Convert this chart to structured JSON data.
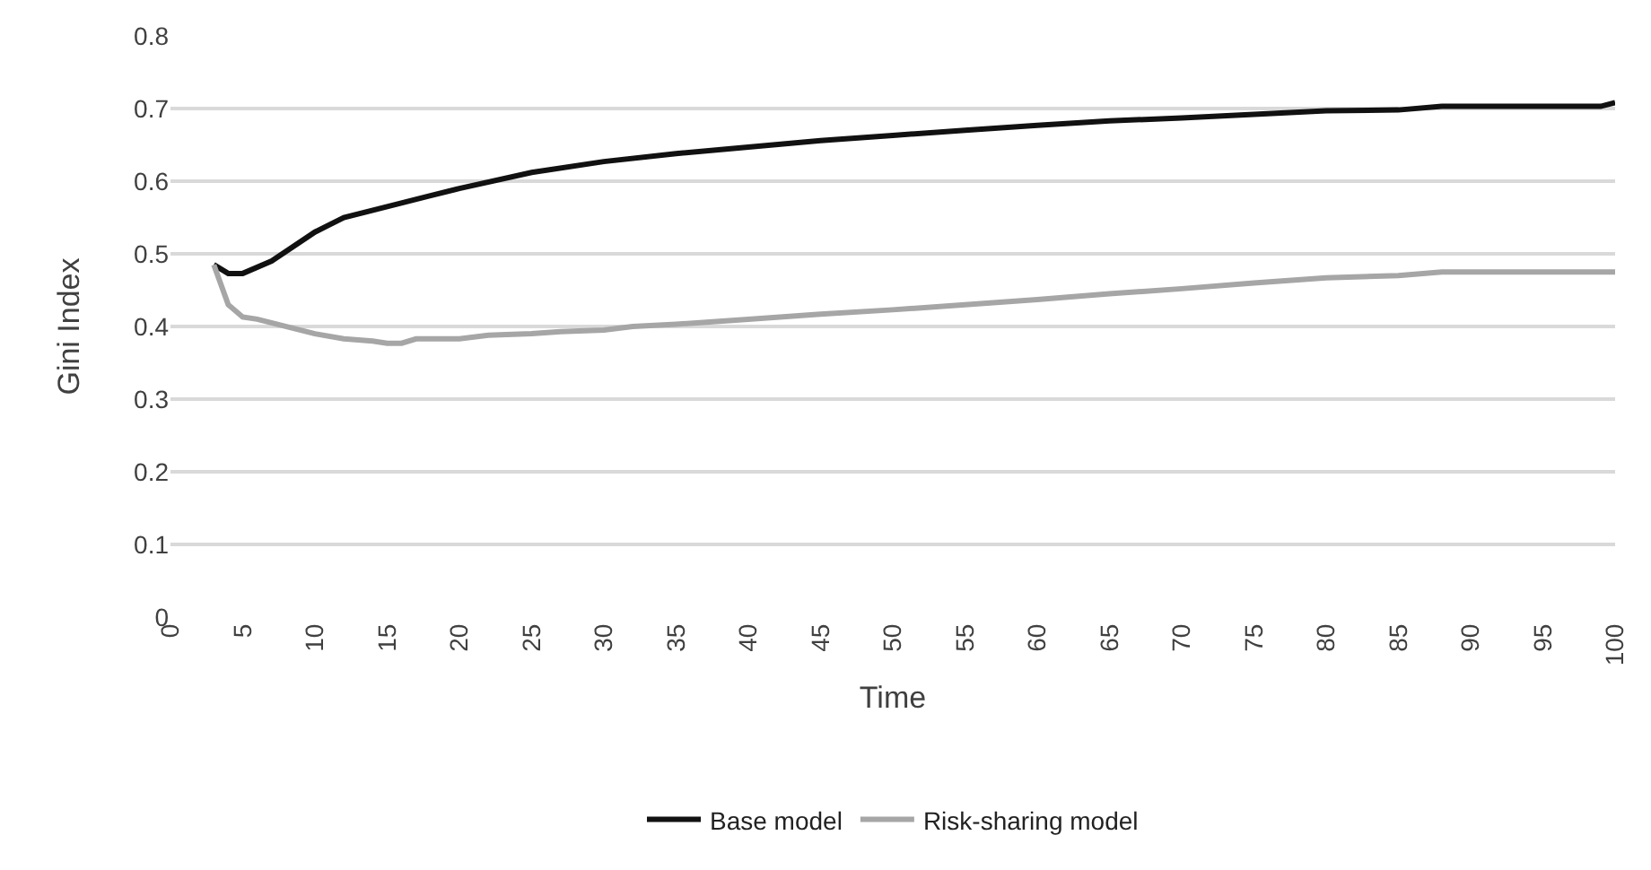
{
  "chart_data": {
    "type": "line",
    "xlabel": "Time",
    "ylabel": "Gini Index",
    "xlim": [
      0,
      100
    ],
    "xticks": [
      0,
      5,
      10,
      15,
      20,
      25,
      30,
      35,
      40,
      45,
      50,
      55,
      60,
      65,
      70,
      75,
      80,
      85,
      90,
      95,
      100
    ],
    "ylim": [
      0,
      0.8
    ],
    "yticks": [
      0,
      0.1,
      0.2,
      0.3,
      0.4,
      0.5,
      0.6,
      0.7,
      0.8
    ],
    "grid": "y",
    "legend": "bottom",
    "marker": "none",
    "line_style": "solid",
    "series": [
      {
        "name": "Base model",
        "color": "#111111",
        "x": [
          3,
          4,
          5,
          7,
          10,
          12,
          15,
          18,
          20,
          25,
          30,
          35,
          40,
          45,
          50,
          55,
          60,
          65,
          70,
          75,
          80,
          85,
          88,
          99,
          100
        ],
        "values": [
          0.485,
          0.473,
          0.473,
          0.49,
          0.53,
          0.55,
          0.565,
          0.58,
          0.59,
          0.612,
          0.627,
          0.638,
          0.647,
          0.656,
          0.663,
          0.67,
          0.677,
          0.683,
          0.687,
          0.692,
          0.697,
          0.698,
          0.703,
          0.703,
          0.708
        ]
      },
      {
        "name": "Risk-sharing model",
        "color": "#a6a6a6",
        "x": [
          3,
          4,
          5,
          6,
          10,
          12,
          14,
          15,
          16,
          17,
          20,
          22,
          25,
          27,
          30,
          32,
          35,
          40,
          45,
          50,
          55,
          60,
          65,
          70,
          75,
          80,
          85,
          88,
          100
        ],
        "values": [
          0.485,
          0.43,
          0.413,
          0.41,
          0.39,
          0.383,
          0.38,
          0.377,
          0.377,
          0.383,
          0.383,
          0.388,
          0.39,
          0.393,
          0.395,
          0.4,
          0.403,
          0.41,
          0.417,
          0.423,
          0.43,
          0.437,
          0.445,
          0.452,
          0.46,
          0.467,
          0.47,
          0.475,
          0.475
        ]
      }
    ]
  }
}
